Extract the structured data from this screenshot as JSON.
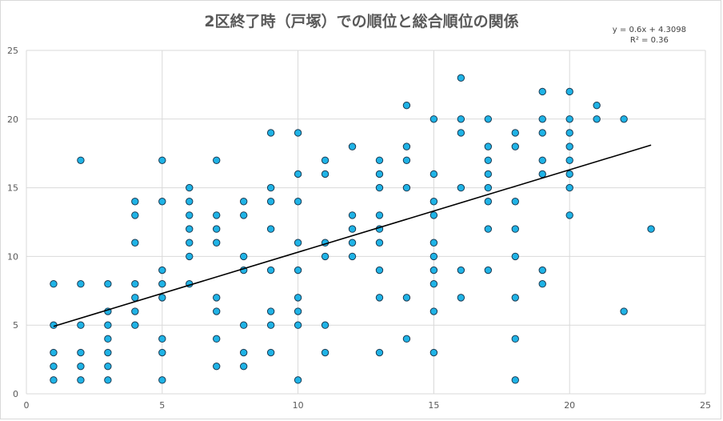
{
  "chart_data": {
    "type": "scatter",
    "title": "2区終了時（戸塚）での順位と総合順位の関係",
    "xlabel": "",
    "ylabel": "",
    "xlim": [
      0,
      25
    ],
    "ylim": [
      0,
      25
    ],
    "xticks": [
      "0",
      "5",
      "10",
      "15",
      "20",
      "25"
    ],
    "yticks": [
      "0",
      "5",
      "10",
      "15",
      "20",
      "25"
    ],
    "grid": true,
    "legend": "none",
    "trendline": {
      "type": "linear",
      "slope": 0.6,
      "intercept": 4.3098,
      "equation": "y = 0.6x + 4.3098",
      "r2_label": "R² = 0.36",
      "x_range": [
        1,
        23
      ]
    },
    "marker_color": "#1fb3e6",
    "marker_edge": "#1a3a52",
    "line_color": "#000000",
    "series": [
      {
        "points": [
          [
            1,
            1
          ],
          [
            1,
            2
          ],
          [
            1,
            3
          ],
          [
            1,
            5
          ],
          [
            1,
            8
          ],
          [
            2,
            1
          ],
          [
            2,
            2
          ],
          [
            2,
            3
          ],
          [
            2,
            5
          ],
          [
            2,
            8
          ],
          [
            2,
            17
          ],
          [
            3,
            1
          ],
          [
            3,
            2
          ],
          [
            3,
            3
          ],
          [
            3,
            4
          ],
          [
            3,
            5
          ],
          [
            3,
            6
          ],
          [
            3,
            8
          ],
          [
            4,
            5
          ],
          [
            4,
            6
          ],
          [
            4,
            7
          ],
          [
            4,
            8
          ],
          [
            4,
            11
          ],
          [
            4,
            13
          ],
          [
            4,
            14
          ],
          [
            5,
            1
          ],
          [
            5,
            3
          ],
          [
            5,
            4
          ],
          [
            5,
            7
          ],
          [
            5,
            8
          ],
          [
            5,
            9
          ],
          [
            5,
            14
          ],
          [
            5,
            17
          ],
          [
            6,
            8
          ],
          [
            6,
            10
          ],
          [
            6,
            11
          ],
          [
            6,
            12
          ],
          [
            6,
            13
          ],
          [
            6,
            14
          ],
          [
            6,
            15
          ],
          [
            7,
            2
          ],
          [
            7,
            4
          ],
          [
            7,
            6
          ],
          [
            7,
            7
          ],
          [
            7,
            11
          ],
          [
            7,
            12
          ],
          [
            7,
            13
          ],
          [
            7,
            17
          ],
          [
            8,
            2
          ],
          [
            8,
            3
          ],
          [
            8,
            5
          ],
          [
            8,
            9
          ],
          [
            8,
            10
          ],
          [
            8,
            13
          ],
          [
            8,
            14
          ],
          [
            9,
            3
          ],
          [
            9,
            5
          ],
          [
            9,
            6
          ],
          [
            9,
            9
          ],
          [
            9,
            12
          ],
          [
            9,
            14
          ],
          [
            9,
            15
          ],
          [
            9,
            19
          ],
          [
            10,
            1
          ],
          [
            10,
            5
          ],
          [
            10,
            6
          ],
          [
            10,
            7
          ],
          [
            10,
            9
          ],
          [
            10,
            11
          ],
          [
            10,
            14
          ],
          [
            10,
            16
          ],
          [
            10,
            19
          ],
          [
            11,
            3
          ],
          [
            11,
            5
          ],
          [
            11,
            10
          ],
          [
            11,
            11
          ],
          [
            11,
            16
          ],
          [
            11,
            17
          ],
          [
            12,
            10
          ],
          [
            12,
            11
          ],
          [
            12,
            12
          ],
          [
            12,
            13
          ],
          [
            12,
            18
          ],
          [
            13,
            3
          ],
          [
            13,
            7
          ],
          [
            13,
            9
          ],
          [
            13,
            11
          ],
          [
            13,
            12
          ],
          [
            13,
            13
          ],
          [
            13,
            15
          ],
          [
            13,
            16
          ],
          [
            13,
            17
          ],
          [
            14,
            4
          ],
          [
            14,
            7
          ],
          [
            14,
            15
          ],
          [
            14,
            17
          ],
          [
            14,
            18
          ],
          [
            14,
            21
          ],
          [
            15,
            3
          ],
          [
            15,
            6
          ],
          [
            15,
            8
          ],
          [
            15,
            9
          ],
          [
            15,
            10
          ],
          [
            15,
            11
          ],
          [
            15,
            13
          ],
          [
            15,
            14
          ],
          [
            15,
            16
          ],
          [
            15,
            20
          ],
          [
            16,
            7
          ],
          [
            16,
            9
          ],
          [
            16,
            15
          ],
          [
            16,
            19
          ],
          [
            16,
            20
          ],
          [
            16,
            23
          ],
          [
            17,
            9
          ],
          [
            17,
            12
          ],
          [
            17,
            14
          ],
          [
            17,
            15
          ],
          [
            17,
            16
          ],
          [
            17,
            17
          ],
          [
            17,
            18
          ],
          [
            17,
            20
          ],
          [
            18,
            1
          ],
          [
            18,
            4
          ],
          [
            18,
            7
          ],
          [
            18,
            10
          ],
          [
            18,
            12
          ],
          [
            18,
            14
          ],
          [
            18,
            18
          ],
          [
            18,
            19
          ],
          [
            19,
            8
          ],
          [
            19,
            9
          ],
          [
            19,
            16
          ],
          [
            19,
            17
          ],
          [
            19,
            19
          ],
          [
            19,
            20
          ],
          [
            19,
            22
          ],
          [
            20,
            13
          ],
          [
            20,
            15
          ],
          [
            20,
            16
          ],
          [
            20,
            17
          ],
          [
            20,
            18
          ],
          [
            20,
            19
          ],
          [
            20,
            20
          ],
          [
            20,
            22
          ],
          [
            21,
            20
          ],
          [
            21,
            21
          ],
          [
            22,
            6
          ],
          [
            22,
            20
          ],
          [
            23,
            12
          ]
        ]
      }
    ]
  }
}
